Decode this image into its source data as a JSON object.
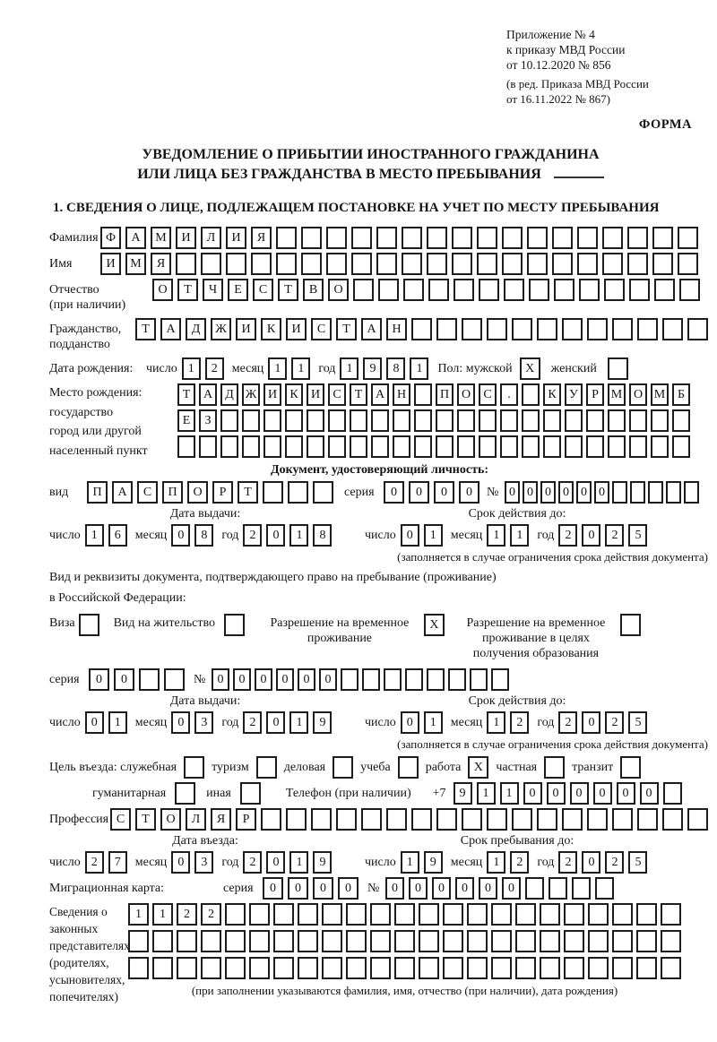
{
  "ref": {
    "l1": "Приложение № 4",
    "l2": "к приказу МВД России",
    "l3": "от 10.12.2020 № 856",
    "l4": "(в ред. Приказа МВД России",
    "l5": "от 16.11.2022 № 867)",
    "forma": "ФОРМА"
  },
  "title": {
    "l1": "УВЕДОМЛЕНИЕ О ПРИБЫТИИ ИНОСТРАННОГО ГРАЖДАНИНА",
    "l2": "ИЛИ ЛИЦА БЕЗ ГРАЖДАНСТВА В МЕСТО ПРЕБЫВАНИЯ"
  },
  "section1": {
    "heading": "1. СВЕДЕНИЯ О ЛИЦЕ, ПОДЛЕЖАЩЕМ ПОСТАНОВКЕ НА УЧЕТ ПО МЕСТУ ПРЕБЫВАНИЯ"
  },
  "labels": {
    "day": "число",
    "month": "месяц",
    "year": "год",
    "issue_date": "Дата выдачи:",
    "valid_until": "Срок действия до:",
    "seriya": "серия",
    "num": "№",
    "validity_note": "(заполняется в случае ограничения срока действия документа)"
  },
  "person": {
    "surname_label": "Фамилия",
    "surname": "ФАМИЛИЯ",
    "name_label": "Имя",
    "name": "ИМЯ",
    "patronymic_label1": "Отчество",
    "patronymic_label2": "(при наличии)",
    "patronymic": "ОТЧЕСТВО",
    "citizenship_label1": "Гражданство,",
    "citizenship_label2": "подданство",
    "citizenship": "ТАДЖИКИСТАН",
    "birthdate_label": "Дата рождения:",
    "birth_day": "12",
    "birth_month": "11",
    "birth_year": "1981",
    "sex_label": "Пол: мужской",
    "male": "X",
    "female_label": "женский",
    "female": "",
    "birthplace_label1": "Место рождения:",
    "birthplace_label2": "государство",
    "birthplace_label3": "город или другой",
    "birthplace_label4": "населенный пункт",
    "birthplace_row1": "ТАДЖИКИСТАН ПОС. КУРМОМБ",
    "birthplace_row2": "ЕЗ",
    "birthplace_row3": ""
  },
  "iddoc": {
    "heading": "Документ, удостоверяющий личность:",
    "vid_label": "вид",
    "vid": "ПАСПОРТ",
    "seriya": "0000",
    "num": "000000",
    "issue_day": "16",
    "issue_month": "08",
    "issue_year": "2018",
    "valid_day": "01",
    "valid_month": "11",
    "valid_year": "2025"
  },
  "residence": {
    "line1": "Вид и реквизиты документа, подтверждающего право на пребывание (проживание)",
    "line2": "в Российской Федерации:",
    "visa_label": "Виза",
    "visa": "",
    "vnzh_label": "Вид на жительство",
    "vnzh": "",
    "rvp_label1": "Разрешение на временное",
    "rvp_label2": "проживание",
    "rvp": "X",
    "rvpo_label1": "Разрешение на временное",
    "rvpo_label2": "проживание в целях",
    "rvpo_label3": "получения образования",
    "rvpo": "",
    "seriya": "00",
    "num": "000000",
    "issue_day": "01",
    "issue_month": "03",
    "issue_year": "2019",
    "valid_day": "01",
    "valid_month": "12",
    "valid_year": "2025"
  },
  "entry": {
    "purpose_label": "Цель въезда: служебная",
    "v_sluzhebnaya": "",
    "opt_turizm": "туризм",
    "v_turizm": "",
    "opt_delovaya": "деловая",
    "v_delovaya": "",
    "opt_ucheba": "учеба",
    "v_ucheba": "",
    "opt_rabota": "работа",
    "v_rabota": "X",
    "opt_chastnaya": "частная",
    "v_chastnaya": "",
    "opt_tranzit": "транзит",
    "v_tranzit": "",
    "opt_gumanitarnaya": "гуманитарная",
    "v_gumanitarnaya": "",
    "opt_inaya": "иная",
    "v_inaya": "",
    "phone_label": "Телефон (при наличии)",
    "phone_prefix": "+7",
    "phone": "911000000",
    "profession_label": "Профессия",
    "profession": "СТОЛЯР",
    "entry_date_label": "Дата въезда:",
    "entry_day": "27",
    "entry_month": "03",
    "entry_year": "2019",
    "stay_label": "Срок пребывания до:",
    "stay_day": "19",
    "stay_month": "12",
    "stay_year": "2025",
    "mk_label": "Миграционная карта:",
    "mk_seriya": "0000",
    "mk_num": "000000"
  },
  "reps": {
    "label1": "Сведения о",
    "label2": "законных",
    "label3": "представителях",
    "label4": "(родителях,",
    "label5": "усыновителях,",
    "label6": "попечителях)",
    "row1": "1122",
    "row2": "",
    "row3": "",
    "note": "(при заполнении указываются фамилия, имя, отчество (при наличии), дата рождения)"
  }
}
